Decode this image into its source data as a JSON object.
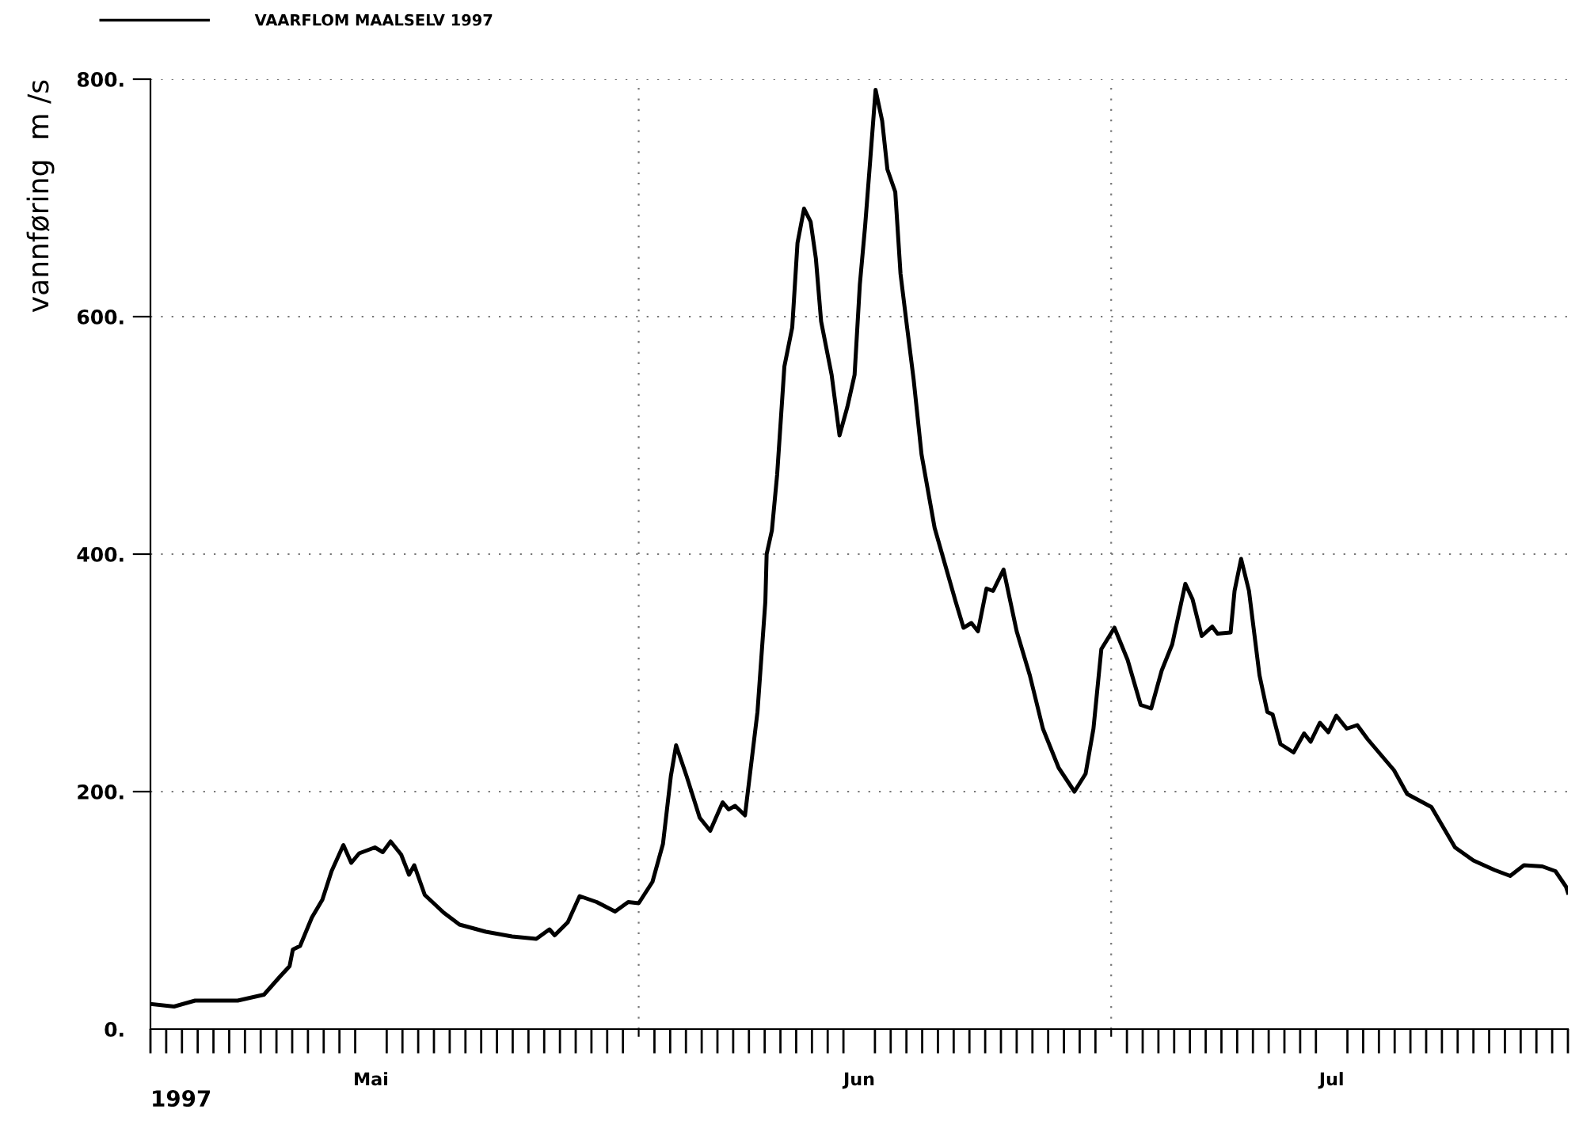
{
  "chart_data": {
    "type": "line",
    "ylabel": "vannføring  m /s",
    "annotations": [
      "1997"
    ],
    "legend": "top left",
    "grid": true,
    "line_style": "solid",
    "marker": "none",
    "xlim": [
      "1997-05-01",
      "1997-07-30"
    ],
    "ylim": [
      0,
      800
    ],
    "yticks": [
      {
        "value": 0,
        "label": "0."
      },
      {
        "value": 200,
        "label": "200."
      },
      {
        "value": 400,
        "label": "400."
      },
      {
        "value": 600,
        "label": "600."
      },
      {
        "value": 800,
        "label": "800."
      }
    ],
    "xticks": [
      {
        "value": "1997-06-01",
        "label": null
      },
      {
        "value": "1997-07-01",
        "label": null
      },
      {
        "value": "1997-05-15",
        "label": "Mai"
      },
      {
        "value": "1997-06-15",
        "label": "Jun"
      },
      {
        "value": "1997-07-15",
        "label": "Jul"
      }
    ],
    "series": [
      {
        "name": "VAARFLOM MAALSELV 1997",
        "color": "#000000",
        "x": [
          "1997-05-01T02:00",
          "1997-05-02T12:00",
          "1997-05-03T20:00",
          "1997-05-06T13:00",
          "1997-05-08T05:00",
          "1997-05-09T05:00",
          "1997-05-09T20:00",
          "1997-05-10T01:00",
          "1997-05-10T12:00",
          "1997-05-11T06:00",
          "1997-05-11T22:00",
          "1997-05-12T12:00",
          "1997-05-13T06:00",
          "1997-05-13T18:00",
          "1997-05-14T06:00",
          "1997-05-15T06:00",
          "1997-05-15T18:00",
          "1997-05-16T06:00",
          "1997-05-16T22:00",
          "1997-05-17T10:00",
          "1997-05-17T18:00",
          "1997-05-18T10:00",
          "1997-05-19T15:00",
          "1997-05-20T15:00",
          "1997-05-22T07:00",
          "1997-05-23T23:00",
          "1997-05-25T12:00",
          "1997-05-26T08:00",
          "1997-05-26T16:00",
          "1997-05-27T12:00",
          "1997-05-28T06:00",
          "1997-05-29T08:00",
          "1997-05-30T12:00",
          "1997-05-31T08:00",
          "1997-06-01T00:00",
          "1997-06-01T21:00",
          "1997-06-02T13:00",
          "1997-06-03T01:00",
          "1997-06-03T09:00",
          "1997-06-04T01:00",
          "1997-06-04T21:00",
          "1997-06-05T13:00",
          "1997-06-06T08:00",
          "1997-06-06T17:00",
          "1997-06-07T03:00",
          "1997-06-07T18:00",
          "1997-06-08T13:00",
          "1997-06-09T01:00",
          "1997-06-09T03:00",
          "1997-06-09T11:00",
          "1997-06-09T19:00",
          "1997-06-10T06:00",
          "1997-06-10T18:00",
          "1997-06-11T02:00",
          "1997-06-11T12:00",
          "1997-06-11T22:00",
          "1997-06-12T06:00",
          "1997-06-12T14:00",
          "1997-06-13T06:00",
          "1997-06-13T18:00",
          "1997-06-14T06:00",
          "1997-06-14T17:00",
          "1997-06-15T01:00",
          "1997-06-15T09:00",
          "1997-06-15T17:00",
          "1997-06-16T01:00",
          "1997-06-16T11:00",
          "1997-06-16T19:00",
          "1997-06-17T07:00",
          "1997-06-17T15:00",
          "1997-06-18T01:00",
          "1997-06-18T11:00",
          "1997-06-18T23:00",
          "1997-06-19T19:00",
          "1997-06-20T11:00",
          "1997-06-21T03:00",
          "1997-06-21T15:00",
          "1997-06-22T03:00",
          "1997-06-22T13:00",
          "1997-06-23T02:00",
          "1997-06-23T12:00",
          "1997-06-24T04:00",
          "1997-06-25T00:00",
          "1997-06-25T20:00",
          "1997-06-26T16:00",
          "1997-06-27T16:00",
          "1997-06-28T16:00",
          "1997-06-29T09:00",
          "1997-06-29T21:00",
          "1997-06-30T09:00",
          "1997-07-01T05:00",
          "1997-07-02T01:00",
          "1997-07-02T21:00",
          "1997-07-03T13:00",
          "1997-07-04T05:00",
          "1997-07-04T21:00",
          "1997-07-05T17:00",
          "1997-07-06T04:00",
          "1997-07-06T18:00",
          "1997-07-07T10:00",
          "1997-07-07T18:00",
          "1997-07-08T14:00",
          "1997-07-08T20:00",
          "1997-07-09T06:00",
          "1997-07-09T18:00",
          "1997-07-10T10:00",
          "1997-07-10T22:00",
          "1997-07-11T06:00",
          "1997-07-11T18:00",
          "1997-07-12T14:00",
          "1997-07-13T06:00",
          "1997-07-13T16:00",
          "1997-07-14T06:00",
          "1997-07-14T19:00",
          "1997-07-15T07:00",
          "1997-07-15T23:00",
          "1997-07-16T15:00",
          "1997-07-17T07:00",
          "1997-07-18T03:00",
          "1997-07-18T23:00",
          "1997-07-19T19:00",
          "1997-07-21T08:00",
          "1997-07-22T20:00",
          "1997-07-24T00:00",
          "1997-07-25T08:00",
          "1997-07-26T08:00",
          "1997-07-27T05:00",
          "1997-07-28T09:00",
          "1997-07-29T05:00",
          "1997-07-29T21:00",
          "1997-07-30"
        ],
        "values": [
          21,
          19,
          24,
          24,
          29,
          44,
          53,
          67,
          70,
          94,
          109,
          133,
          155,
          140,
          148,
          153,
          149,
          158,
          147,
          130,
          138,
          113,
          98,
          88,
          82,
          78,
          76,
          84,
          79,
          90,
          112,
          107,
          99,
          107,
          106,
          124,
          156,
          213,
          239,
          213,
          178,
          167,
          191,
          185,
          188,
          180,
          267,
          360,
          400,
          420,
          467,
          558,
          591,
          662,
          691,
          680,
          649,
          596,
          551,
          500,
          524,
          551,
          627,
          676,
          733,
          791,
          765,
          724,
          705,
          636,
          591,
          547,
          484,
          422,
          391,
          360,
          338,
          342,
          335,
          371,
          369,
          387,
          335,
          298,
          253,
          220,
          200,
          215,
          253,
          320,
          338,
          311,
          273,
          270,
          302,
          324,
          375,
          362,
          331,
          339,
          333,
          334,
          369,
          396,
          369,
          298,
          267,
          265,
          240,
          233,
          249,
          242,
          258,
          250,
          264,
          253,
          256,
          244,
          231,
          218,
          198,
          187,
          153,
          142,
          134,
          129,
          138,
          137,
          133,
          120,
          115
        ]
      }
    ]
  }
}
